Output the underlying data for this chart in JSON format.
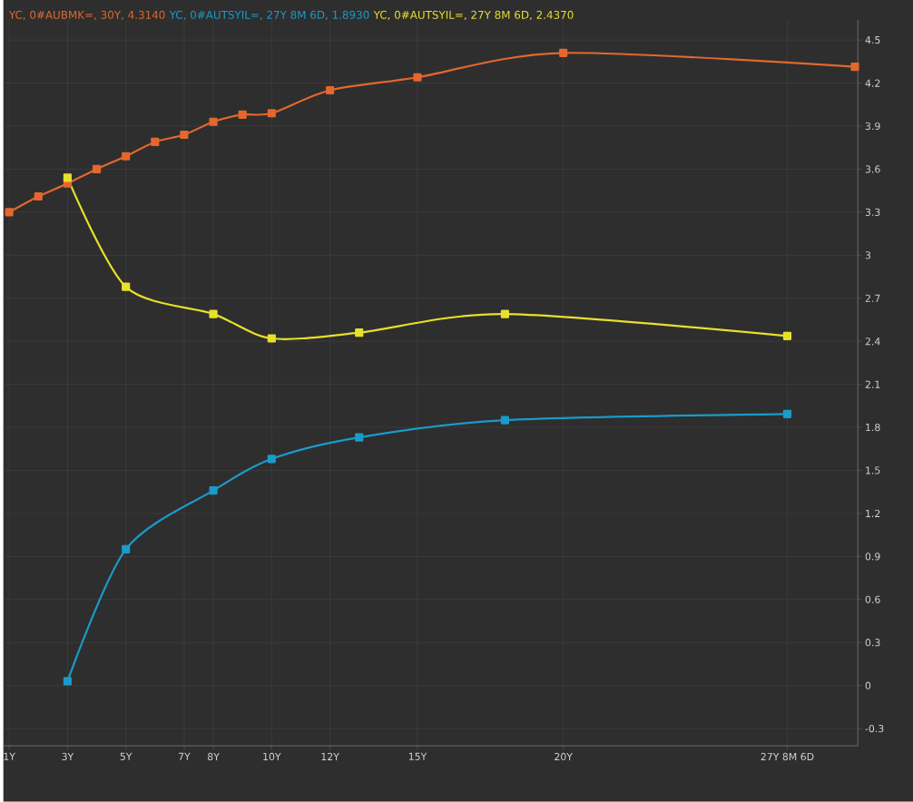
{
  "chart_data": {
    "type": "line",
    "xlim": [
      0.8,
      30.1
    ],
    "ylim": [
      -0.42,
      4.64
    ],
    "xticks": [
      {
        "value": 1,
        "label": "1Y"
      },
      {
        "value": 3,
        "label": "3Y"
      },
      {
        "value": 5,
        "label": "5Y"
      },
      {
        "value": 7,
        "label": "7Y"
      },
      {
        "value": 8,
        "label": "8Y"
      },
      {
        "value": 10,
        "label": "10Y"
      },
      {
        "value": 12,
        "label": "12Y"
      },
      {
        "value": 15,
        "label": "15Y"
      },
      {
        "value": 20,
        "label": "20Y"
      },
      {
        "value": 27.68,
        "label": "27Y 8M 6D"
      }
    ],
    "yticks": [
      -0.3,
      0,
      0.3,
      0.6,
      0.9,
      1.2,
      1.5,
      1.8,
      2.1,
      2.4,
      2.7,
      3,
      3.3,
      3.6,
      3.9,
      4.2,
      4.5
    ],
    "grid": true,
    "legend": "top",
    "marker": "square",
    "line_style": "solid",
    "series": [
      {
        "name": "YC, 0#AUBMK=, 30Y, 4.3140",
        "color": "#e4672d",
        "x": [
          1,
          2,
          3,
          4,
          5,
          6,
          7,
          8,
          9,
          10,
          12,
          15,
          20,
          30
        ],
        "values": [
          3.3,
          3.41,
          3.5,
          3.6,
          3.69,
          3.79,
          3.84,
          3.93,
          3.98,
          3.99,
          4.15,
          4.24,
          4.41,
          4.314
        ]
      },
      {
        "name": "YC, 0#AUTSYIL=, 27Y 8M 6D, 1.8930",
        "color": "#1a9bc9",
        "x": [
          3,
          5,
          8,
          10,
          13,
          18,
          27.68
        ],
        "values": [
          0.03,
          0.95,
          1.36,
          1.58,
          1.73,
          1.85,
          1.893
        ]
      },
      {
        "name": "YC, 0#AUTSYIL=, 27Y 8M 6D, 2.4370",
        "color": "#e8e02a",
        "x": [
          3,
          5,
          8,
          10,
          13,
          18,
          27.68
        ],
        "values": [
          3.54,
          2.78,
          2.59,
          2.42,
          2.46,
          2.59,
          2.437
        ]
      }
    ]
  }
}
